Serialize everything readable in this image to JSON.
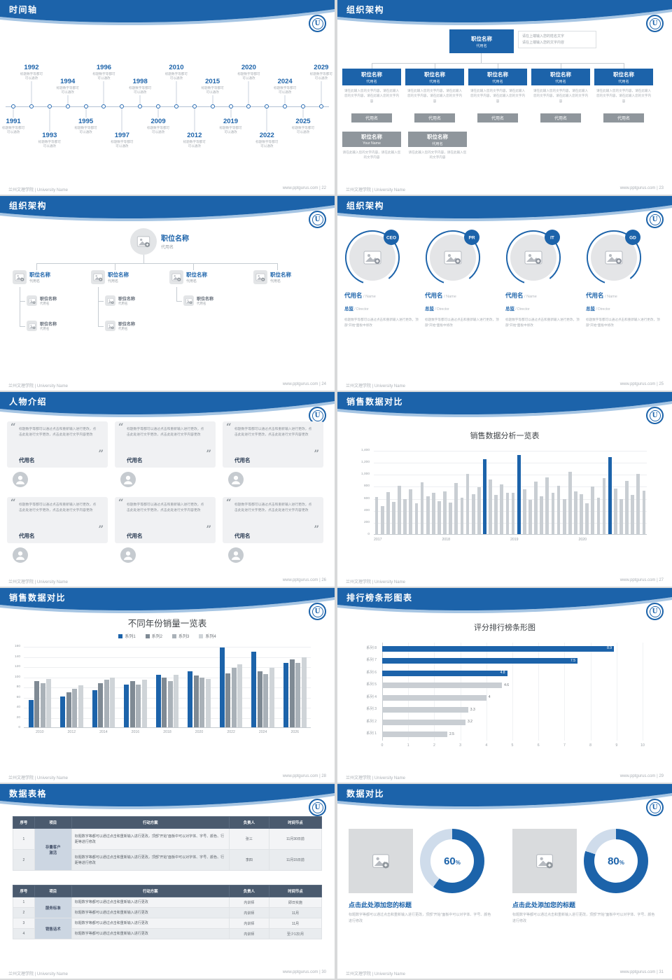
{
  "logo_letter": "U",
  "theme": {
    "blue": "#1c63aa",
    "gray_bar": "#c9ced3",
    "dark_slate": "#4a5a6e"
  },
  "footer": {
    "left": "兰州文理学院 | University Name",
    "site": "www.pptgurus.com"
  },
  "slides": {
    "s22": {
      "title": "时间轴",
      "page": "22",
      "footer_right": "www.pptgurus.com | 22",
      "desc": "标题数字等都可\n可以通改",
      "items": [
        {
          "year": "1991",
          "side": "bottom",
          "tier": "near"
        },
        {
          "year": "1992",
          "side": "top",
          "tier": "far"
        },
        {
          "year": "1993",
          "side": "bottom",
          "tier": "far"
        },
        {
          "year": "1994",
          "side": "top",
          "tier": "near"
        },
        {
          "year": "1995",
          "side": "bottom",
          "tier": "near"
        },
        {
          "year": "1996",
          "side": "top",
          "tier": "far"
        },
        {
          "year": "1997",
          "side": "bottom",
          "tier": "far"
        },
        {
          "year": "1998",
          "side": "top",
          "tier": "near"
        },
        {
          "year": "2009",
          "side": "bottom",
          "tier": "near"
        },
        {
          "year": "2010",
          "side": "top",
          "tier": "far"
        },
        {
          "year": "2012",
          "side": "bottom",
          "tier": "far"
        },
        {
          "year": "2015",
          "side": "top",
          "tier": "near"
        },
        {
          "year": "2019",
          "side": "bottom",
          "tier": "near"
        },
        {
          "year": "2020",
          "side": "top",
          "tier": "far"
        },
        {
          "year": "2022",
          "side": "bottom",
          "tier": "far"
        },
        {
          "year": "2024",
          "side": "top",
          "tier": "near"
        },
        {
          "year": "2025",
          "side": "bottom",
          "tier": "near"
        },
        {
          "year": "2029",
          "side": "top",
          "tier": "far"
        }
      ]
    },
    "s23": {
      "title": "组织架构",
      "page": "23",
      "footer_right": "www.pptgurus.com | 23",
      "root": {
        "title": "职位名称",
        "sub": "代用名"
      },
      "root_note": "请在上端输入您的姓名文字\n请在上端输入您的文字内容",
      "col_note": "请在此输入您的文字内容，请在此输入您的文字内容，请在此输入您的文字内容",
      "cols": [
        {
          "title": "职位名称",
          "sub": "代用名",
          "tag": "代用名"
        },
        {
          "title": "职位名称",
          "sub": "代用名",
          "tag": "代用名"
        },
        {
          "title": "职位名称",
          "sub": "代用名",
          "tag": "代用名"
        },
        {
          "title": "职位名称",
          "sub": "代用名",
          "tag": "代用名"
        },
        {
          "title": "职位名称",
          "sub": "代用名",
          "tag": "代用名"
        }
      ],
      "bottom": [
        {
          "title": "职位名称",
          "sub": "Your Name",
          "note": "请在此输入您的文字内容，请在此输入您的文字内容"
        },
        {
          "title": "职位名称",
          "sub": "代用名",
          "note": "请在此输入您的文字内容，请在此输入您的文字内容"
        }
      ]
    },
    "s24": {
      "title": "组织架构",
      "page": "24",
      "footer_right": "www.pptgurus.com | 24",
      "root": {
        "title": "职位名称",
        "sub": "代用名"
      },
      "branches": [
        {
          "title": "职位名称",
          "sub": "代用名",
          "subs": [
            {
              "title": "职位名称",
              "sub": "代用名"
            },
            {
              "title": "职位名称",
              "sub": "代用名"
            }
          ]
        },
        {
          "title": "职位名称",
          "sub": "代用名",
          "subs": [
            {
              "title": "职位名称",
              "sub": "代用名"
            },
            {
              "title": "职位名称",
              "sub": "代用名"
            }
          ]
        },
        {
          "title": "职位名称",
          "sub": "代用名",
          "subs": [
            {
              "title": "职位名称",
              "sub": "代用名"
            }
          ]
        },
        {
          "title": "职位名称",
          "sub": "代用名",
          "subs": []
        }
      ]
    },
    "s25": {
      "title": "组织架构",
      "page": "25",
      "footer_right": "www.pptgurus.com | 25",
      "para": "标题数字等都可以通过点击和重新输入进行更改，顶部“开始”面板中修改",
      "profiles": [
        {
          "badge": "CEO",
          "name": "代用名",
          "name_en": "/ Name",
          "role": "总监",
          "role_en": "/ Director"
        },
        {
          "badge": "PR",
          "name": "代用名",
          "name_en": "/ Name",
          "role": "总监",
          "role_en": "/ Director"
        },
        {
          "badge": "IT",
          "name": "代用名",
          "name_en": "/ Name",
          "role": "总监",
          "role_en": "/ Director"
        },
        {
          "badge": "GD",
          "name": "代用名",
          "name_en": "/ Name",
          "role": "总监",
          "role_en": "/ Director"
        }
      ]
    },
    "s26": {
      "title": "人物介绍",
      "page": "26",
      "footer_right": "www.pptgurus.com | 26",
      "open_quote": "“",
      "close_quote": "”",
      "quote": "标题数字等都可以通过点击和重新输入进行更改，点击此处进行文字更改，点击此处进行文字内容更改",
      "cards": [
        {
          "name": "代用名"
        },
        {
          "name": "代用名"
        },
        {
          "name": "代用名"
        },
        {
          "name": "代用名"
        },
        {
          "name": "代用名"
        },
        {
          "name": "代用名"
        }
      ]
    },
    "s27": {
      "title": "销售数据对比",
      "page": "27",
      "footer_right": "www.pptgurus.com | 27",
      "chart_data": {
        "type": "bar",
        "title": "销售数据分析一览表",
        "y_ticks": [
          "1,400",
          "1,200",
          "1,000",
          "800",
          "600",
          "400",
          "200",
          "0"
        ],
        "y_max": 1400,
        "groups": [
          "2017",
          "2018",
          "2019",
          "2020"
        ],
        "values": [
          630,
          480,
          710,
          550,
          820,
          600,
          760,
          520,
          880,
          640,
          700,
          560,
          720,
          540,
          860,
          620,
          1010,
          680,
          790,
          1260,
          920,
          660,
          840,
          700,
          700,
          1330,
          760,
          580,
          890,
          640,
          960,
          700,
          820,
          600,
          1050,
          720,
          680,
          520,
          800,
          620,
          940,
          1290,
          770,
          590,
          900,
          660,
          1020,
          730
        ],
        "highlight_indexes": [
          19,
          25,
          41
        ],
        "bar_color": "#c9ced3",
        "highlight_color": "#1c63aa"
      }
    },
    "s28": {
      "title": "销售数据对比",
      "page": "28",
      "footer_right": "www.pptgurus.com | 28",
      "chart_data": {
        "type": "bar",
        "title": "不同年份销量一览表",
        "categories": [
          "2010",
          "2012",
          "2014",
          "2016",
          "2018",
          "2020",
          "2022",
          "2024",
          "2026"
        ],
        "series": [
          {
            "name": "系列1",
            "color": "#1c63aa",
            "values": [
              55,
              62,
              75,
              85,
              105,
              112,
              158,
              150,
              128
            ]
          },
          {
            "name": "系列2",
            "color": "#7f8a94",
            "values": [
              92,
              70,
              88,
              92,
              100,
              104,
              108,
              112,
              135
            ]
          },
          {
            "name": "系列3",
            "color": "#a9b1b8",
            "values": [
              88,
              78,
              95,
              85,
              92,
              100,
              118,
              106,
              128
            ]
          },
          {
            "name": "系列4",
            "color": "#cfd4d8",
            "values": [
              96,
              84,
              100,
              95,
              105,
              96,
              125,
              118,
              140
            ]
          }
        ],
        "y_max": 160,
        "y_step": 20
      }
    },
    "s29": {
      "title": "排行榜条形图表",
      "page": "29",
      "footer_right": "www.pptgurus.com | 29",
      "chart_data": {
        "type": "bar-horizontal",
        "title": "评分排行榜条形图",
        "rows": [
          {
            "label": "系列 8",
            "value": 8.9,
            "color": "blue"
          },
          {
            "label": "系列 7",
            "value": 7.5,
            "color": "blue"
          },
          {
            "label": "系列 6",
            "value": 4.8,
            "color": "blue"
          },
          {
            "label": "系列 5",
            "value": 4.6,
            "color": "gray"
          },
          {
            "label": "系列 4",
            "value": 4,
            "color": "gray"
          },
          {
            "label": "系列 3",
            "value": 3.3,
            "color": "gray"
          },
          {
            "label": "系列 2",
            "value": 3.2,
            "color": "gray"
          },
          {
            "label": "系列 1",
            "value": 2.5,
            "color": "gray"
          }
        ],
        "x_ticks": [
          "0",
          "1",
          "2",
          "3",
          "4",
          "5",
          "6",
          "7",
          "8",
          "9",
          "10"
        ],
        "x_max": 10
      }
    },
    "s30": {
      "title": "数据表格",
      "page": "30",
      "footer_right": "www.pptgurus.com | 30",
      "t1": {
        "headers": [
          "序号",
          "项目",
          "行动方案",
          "负责人",
          "时间节点"
        ],
        "merge": "存量客户\n激活",
        "rows": [
          {
            "no": "1",
            "plan": "标题数字等都可以通过点击和重新输入进行更改，顶部“开始”面板中可以对字体、字号、颜色、行距等进行修改",
            "owner": "张三",
            "time": "11月30日前"
          },
          {
            "no": "2",
            "plan": "标题数字等都可以通过点击和重新输入进行更改，顶部“开始”面板中可以对字体、字号、颜色、行距等进行修改",
            "owner": "李四",
            "time": "11月15日前"
          }
        ]
      },
      "t2": {
        "headers": [
          "序号",
          "项目",
          "行动方案",
          "负责人",
          "时间节点"
        ],
        "groups": [
          "服务标准",
          "销售话术"
        ],
        "rows": [
          {
            "no": "1",
            "plan": "标题数字等都可以通过点击和重新输入进行更改",
            "owner": "内训师",
            "time": "即日实施"
          },
          {
            "no": "2",
            "plan": "标题数字等都可以通过点击和重新输入进行更改",
            "owner": "内训师",
            "time": "11月"
          },
          {
            "no": "3",
            "plan": "标题数字等都可以通过点击和重新输入进行更改",
            "owner": "内训师",
            "time": "11月"
          },
          {
            "no": "4",
            "plan": "标题数字等都可以通过点击和重新输入进行更改",
            "owner": "内训师",
            "time": "至少1次/月"
          }
        ]
      }
    },
    "s31": {
      "title": "数据对比",
      "page": "31",
      "footer_right": "www.pptgurus.com | 31",
      "panels": [
        {
          "pct": 60,
          "pct_label": "60",
          "pct_suffix": "%",
          "heading": "点击此处添加您的标题",
          "text": "标题数字等都可以通过点击和重新输入进行更改，顶部“开始”面板中可以对字体、字号、颜色进行修改"
        },
        {
          "pct": 80,
          "pct_label": "80",
          "pct_suffix": "%",
          "heading": "点击此处添加您的标题",
          "text": "标题数字等都可以通过点击和重新输入进行更改，顶部“开始”面板中可以对字体、字号、颜色进行修改"
        }
      ]
    }
  }
}
